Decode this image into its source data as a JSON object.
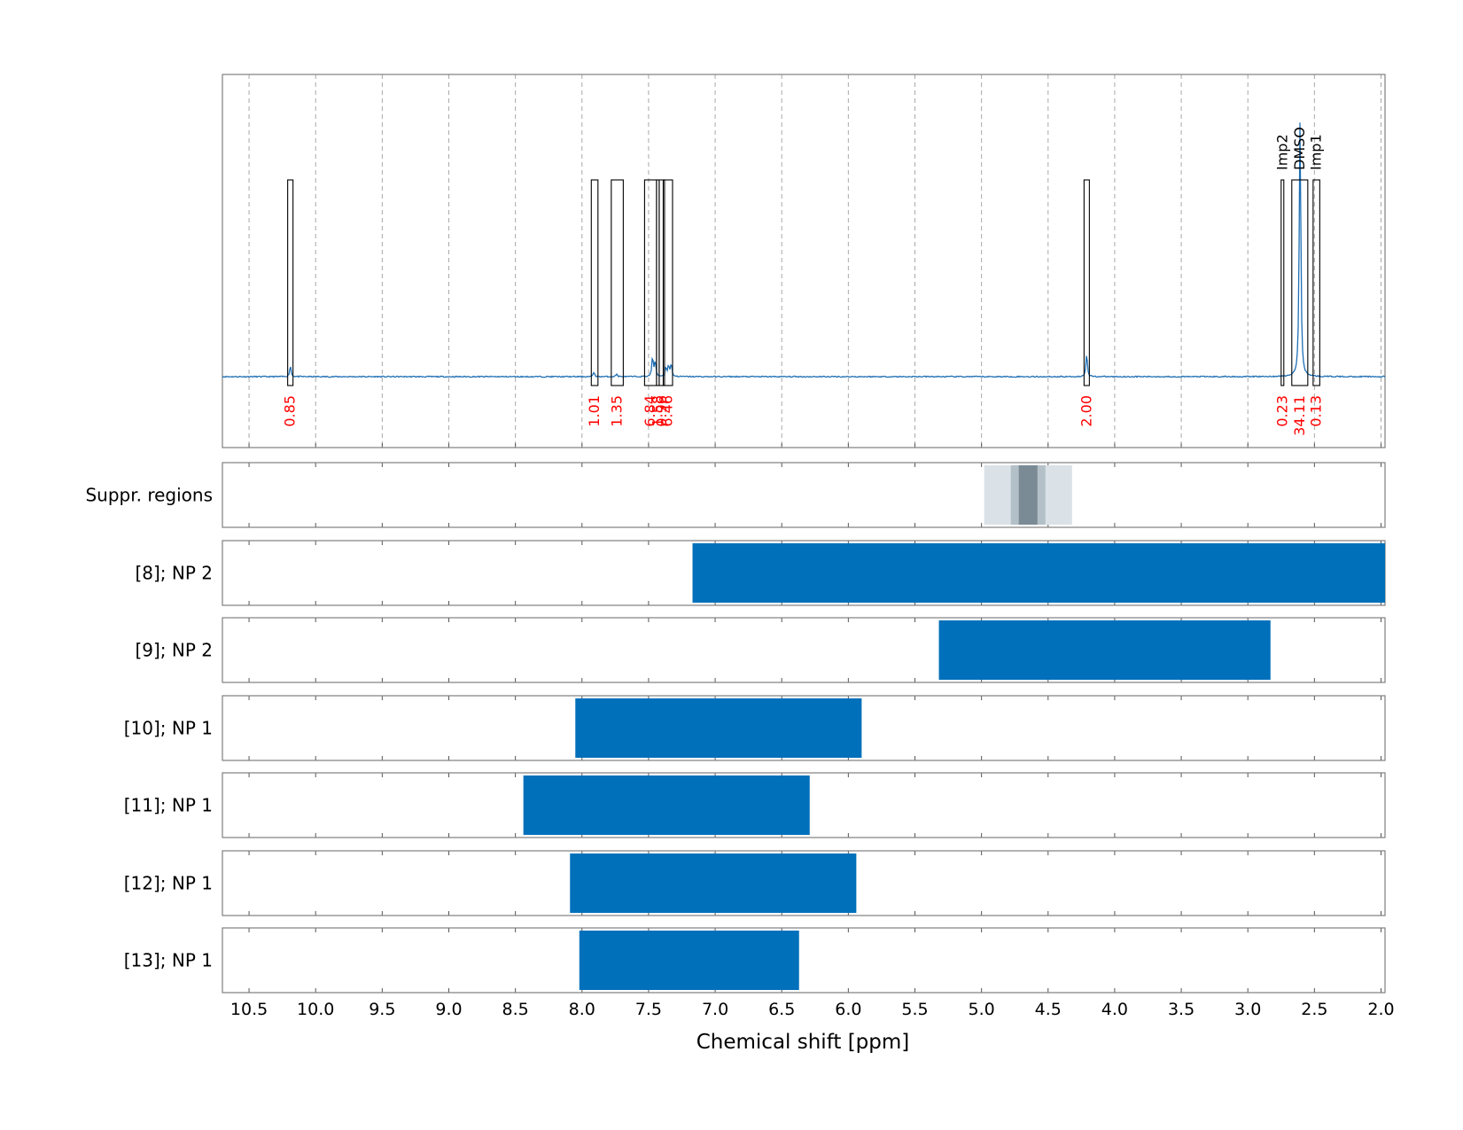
{
  "chart_data": {
    "type": "nmr-spectrum-with-range-bars",
    "xlabel": "Chemical shift [ppm]",
    "xlim": [
      10.7,
      1.97
    ],
    "x_reversed": true,
    "x_ticks": [
      "10.5",
      "10.0",
      "9.5",
      "9.0",
      "8.5",
      "8.0",
      "7.5",
      "7.0",
      "6.5",
      "6.0",
      "5.5",
      "5.0",
      "4.5",
      "4.0",
      "3.5",
      "3.0",
      "2.5",
      "2.0"
    ],
    "grid": "vertical dashed",
    "colors": {
      "spectrum": "#1f6fb4",
      "bars": "#0070bb",
      "integral_labels": "#ff0000",
      "suppression": [
        "#dae2e8",
        "#b4c0c8",
        "#7a8b96"
      ]
    },
    "spectrum": {
      "peaks": [
        {
          "ppm": 10.19,
          "height": 0.06
        },
        {
          "ppm": 7.91,
          "height": 0.025
        },
        {
          "ppm": 7.74,
          "height": 0.015
        },
        {
          "ppm": 7.47,
          "height": 0.11
        },
        {
          "ppm": 7.45,
          "height": 0.08
        },
        {
          "ppm": 7.37,
          "height": 0.05
        },
        {
          "ppm": 7.35,
          "height": 0.06
        },
        {
          "ppm": 7.33,
          "height": 0.07
        },
        {
          "ppm": 4.21,
          "height": 0.13
        },
        {
          "ppm": 2.61,
          "height": 1.0
        },
        {
          "ppm": 2.605,
          "height": 0.55
        }
      ]
    },
    "integrals": [
      {
        "from": 10.21,
        "to": 10.17,
        "value": "0.85"
      },
      {
        "from": 7.93,
        "to": 7.88,
        "value": "1.01"
      },
      {
        "from": 7.78,
        "to": 7.69,
        "value": "1.35"
      },
      {
        "from": 7.53,
        "to": 7.44,
        "value": "6.84"
      },
      {
        "from": 7.44,
        "to": 7.42,
        "value": "1.58"
      },
      {
        "from": 7.42,
        "to": 7.38,
        "value": "0.96"
      },
      {
        "from": 7.39,
        "to": 7.32,
        "value": "6.46"
      },
      {
        "from": 4.23,
        "to": 4.19,
        "value": "2.00"
      },
      {
        "from": 2.75,
        "to": 2.73,
        "value": "0.23",
        "label": "Imp2"
      },
      {
        "from": 2.67,
        "to": 2.55,
        "value": "34.11",
        "label": "DMSO"
      },
      {
        "from": 2.51,
        "to": 2.46,
        "value": "0.13",
        "label": "Imp1"
      }
    ],
    "suppression_regions": [
      {
        "from": 4.98,
        "to": 4.32,
        "level": "light"
      },
      {
        "from": 4.78,
        "to": 4.52,
        "level": "medium"
      },
      {
        "from": 4.72,
        "to": 4.58,
        "level": "dark"
      }
    ],
    "rows": [
      {
        "label": "Suppr. regions",
        "kind": "suppression"
      },
      {
        "label": "[8]; NP 2",
        "from": 7.17,
        "to": 1.97
      },
      {
        "label": "[9]; NP 2",
        "from": 5.32,
        "to": 2.83
      },
      {
        "label": "[10]; NP 1",
        "from": 8.05,
        "to": 5.9
      },
      {
        "label": "[11]; NP 1",
        "from": 8.44,
        "to": 6.29
      },
      {
        "label": "[12]; NP 1",
        "from": 8.09,
        "to": 5.94
      },
      {
        "label": "[13]; NP 1",
        "from": 8.02,
        "to": 6.37
      }
    ]
  }
}
